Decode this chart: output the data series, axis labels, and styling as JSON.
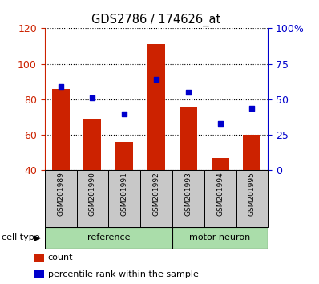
{
  "title": "GDS2786 / 174626_at",
  "samples": [
    "GSM201989",
    "GSM201990",
    "GSM201991",
    "GSM201992",
    "GSM201993",
    "GSM201994",
    "GSM201995"
  ],
  "counts": [
    86,
    69,
    56,
    111,
    76,
    47,
    60
  ],
  "percentiles": [
    59,
    51,
    40,
    64,
    55,
    33,
    44
  ],
  "groups": [
    {
      "label": "reference",
      "span": [
        0,
        3
      ],
      "color": "#aaddaa"
    },
    {
      "label": "motor neuron",
      "span": [
        4,
        6
      ],
      "color": "#aaddaa"
    }
  ],
  "ylim_left": [
    40,
    120
  ],
  "ylim_right": [
    0,
    100
  ],
  "yticks_left": [
    40,
    60,
    80,
    100,
    120
  ],
  "yticks_right": [
    0,
    25,
    50,
    75,
    100
  ],
  "ytick_labels_right": [
    "0",
    "25",
    "50",
    "75",
    "100%"
  ],
  "bar_color": "#cc2200",
  "scatter_color": "#0000cc",
  "bar_width": 0.55,
  "tick_area_color": "#c8c8c8",
  "grid_color": "black",
  "left_axis_color": "#cc2200",
  "right_axis_color": "#0000cc",
  "legend_items": [
    {
      "label": "count",
      "color": "#cc2200"
    },
    {
      "label": "percentile rank within the sample",
      "color": "#0000cc"
    }
  ],
  "cell_type_label": "cell type",
  "figsize": [
    3.98,
    3.54
  ],
  "dpi": 100
}
